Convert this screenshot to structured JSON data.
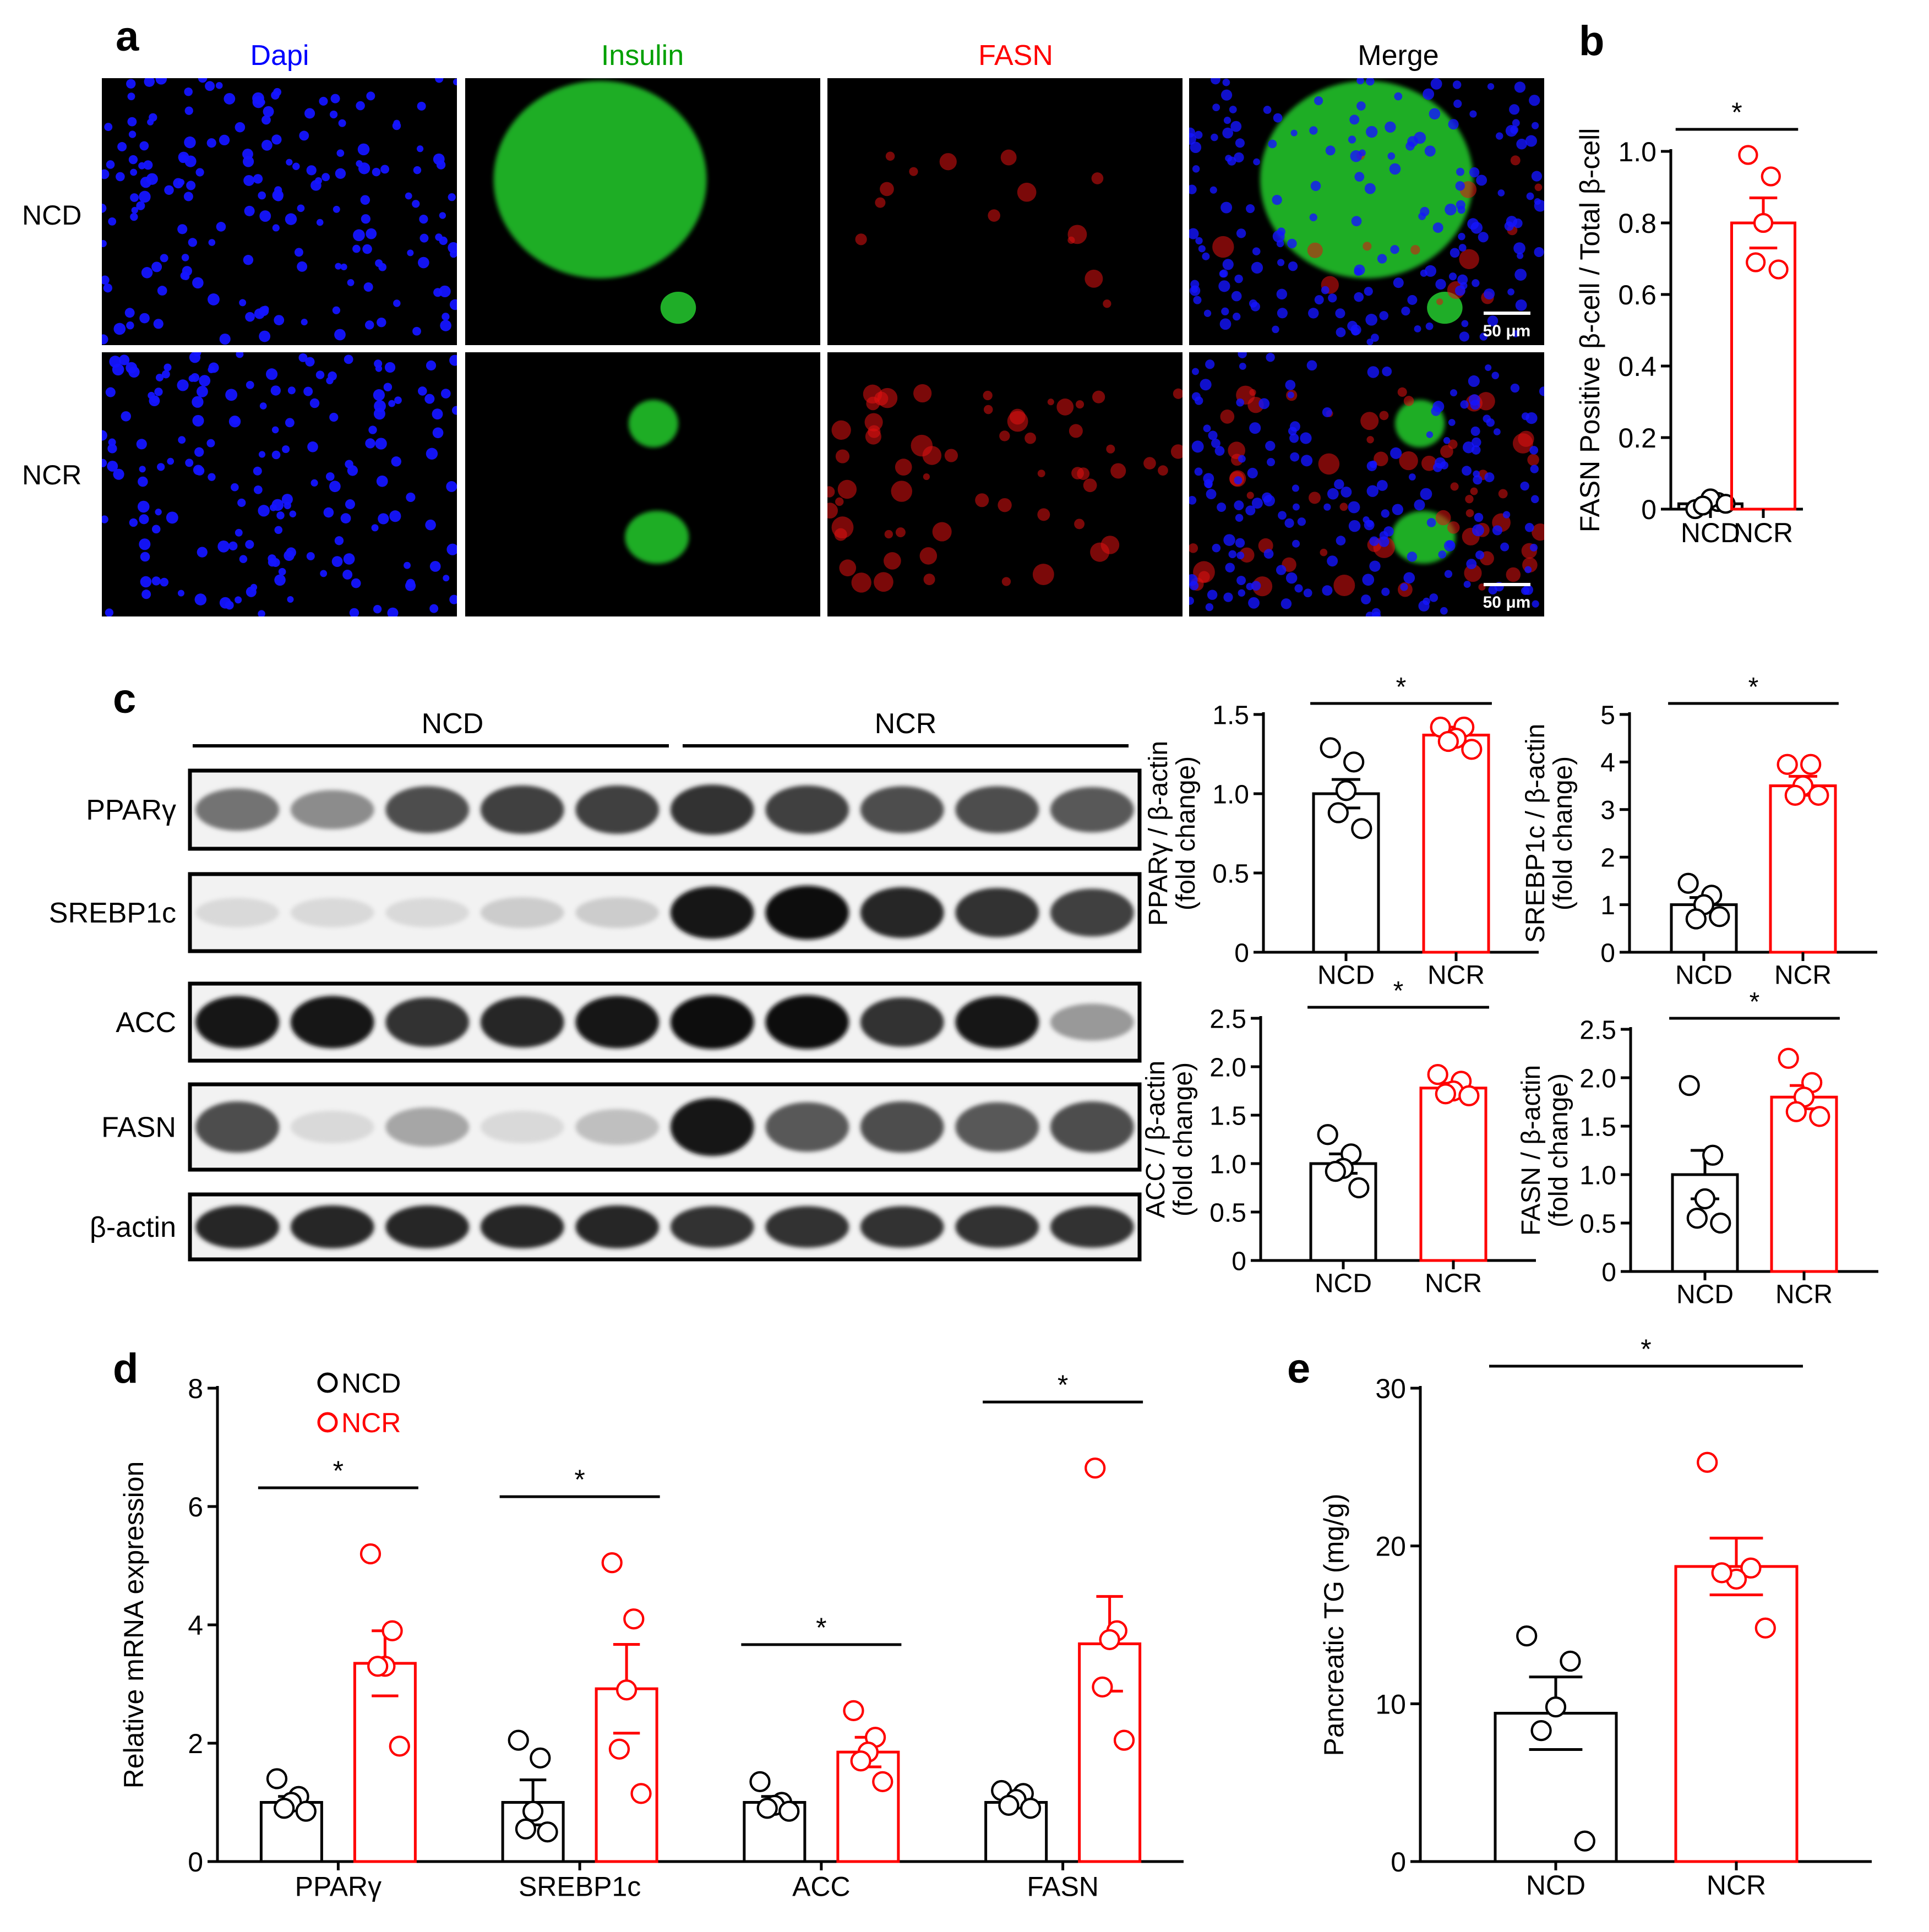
{
  "panel_a": {
    "letter": "a",
    "channels": [
      "Dapi",
      "Insulin",
      "FASN",
      "Merge"
    ],
    "channel_colors": [
      "#0000ff",
      "#00a000",
      "#ff0000",
      "#000000"
    ],
    "rows": [
      "NCD",
      "NCR"
    ],
    "scale_bar": "50 μm"
  },
  "panel_b": {
    "letter": "b",
    "sig": "*"
  },
  "panel_c": {
    "letter": "c",
    "group_labels": [
      "NCD",
      "NCR"
    ],
    "blots": [
      "PPARγ",
      "SREBP1c",
      "ACC",
      "FASN",
      "β-actin"
    ],
    "blot_intensity": {
      "PPARγ": [
        0.55,
        0.45,
        0.7,
        0.75,
        0.75,
        0.8,
        0.75,
        0.7,
        0.7,
        0.65
      ],
      "SREBP1c": [
        0.15,
        0.15,
        0.15,
        0.2,
        0.2,
        0.9,
        0.95,
        0.85,
        0.8,
        0.75
      ],
      "ACC": [
        0.9,
        0.9,
        0.8,
        0.85,
        0.9,
        0.95,
        0.95,
        0.8,
        0.9,
        0.4
      ],
      "FASN": [
        0.7,
        0.15,
        0.35,
        0.15,
        0.25,
        0.9,
        0.65,
        0.7,
        0.65,
        0.7
      ],
      "β-actin": [
        0.85,
        0.85,
        0.85,
        0.85,
        0.85,
        0.8,
        0.8,
        0.8,
        0.8,
        0.8
      ]
    },
    "sig": "*"
  },
  "panel_d": {
    "letter": "d",
    "sig": "*"
  },
  "panel_e": {
    "letter": "e",
    "sig": "*"
  },
  "colors": {
    "ncd": "#000000",
    "ncr": "#ff0000"
  },
  "chart_data": [
    {
      "id": "b",
      "type": "bar",
      "ylabel": "FASN  Positive β-cell / Total β-cell",
      "categories": [
        "NCD",
        "NCR"
      ],
      "ylim": [
        0,
        1.0
      ],
      "yticks": [
        0,
        0.2,
        0.4,
        0.6,
        0.8,
        1.0
      ],
      "yticklabels": [
        "0",
        "0.2",
        "0.4",
        "0.6",
        "0.8",
        "1.0"
      ],
      "means": [
        0.015,
        0.8
      ],
      "sem": [
        0.01,
        0.07
      ],
      "points": [
        [
          0.0,
          0.02,
          0.03,
          0.01,
          0.015
        ],
        [
          0.99,
          0.93,
          0.8,
          0.69,
          0.67
        ]
      ]
    },
    {
      "id": "c1",
      "type": "bar",
      "ylabel": "PPARγ / β-actin\n(fold change)",
      "categories": [
        "NCD",
        "NCR"
      ],
      "ylim": [
        0,
        1.5
      ],
      "yticks": [
        0,
        0.5,
        1.0,
        1.5
      ],
      "yticklabels": [
        "0",
        "0.5",
        "1.0",
        "1.5"
      ],
      "means": [
        1.0,
        1.37
      ],
      "sem": [
        0.09,
        0.05
      ],
      "points": [
        [
          1.29,
          1.2,
          1.02,
          0.88,
          0.78
        ],
        [
          1.42,
          1.42,
          1.35,
          1.33,
          1.28
        ]
      ]
    },
    {
      "id": "c2",
      "type": "bar",
      "ylabel": "SREBP1c / β-actin\n(fold change)",
      "categories": [
        "NCD",
        "NCR"
      ],
      "ylim": [
        0,
        5
      ],
      "yticks": [
        0,
        1,
        2,
        3,
        4,
        5
      ],
      "yticklabels": [
        "0",
        "1",
        "2",
        "3",
        "4",
        "5"
      ],
      "means": [
        1.0,
        3.5
      ],
      "sem": [
        0.15,
        0.2
      ],
      "points": [
        [
          1.45,
          1.2,
          1.0,
          0.7,
          0.75
        ],
        [
          3.95,
          3.95,
          3.5,
          3.3,
          3.3
        ]
      ]
    },
    {
      "id": "c3",
      "type": "bar",
      "ylabel": "ACC / β-actin\n(fold change)",
      "categories": [
        "NCD",
        "NCR"
      ],
      "ylim": [
        0,
        2.5
      ],
      "yticks": [
        0,
        0.5,
        1.0,
        1.5,
        2.0,
        2.5
      ],
      "yticklabels": [
        "0",
        "0.5",
        "1.0",
        "1.5",
        "2.0",
        "2.5"
      ],
      "means": [
        1.0,
        1.78
      ],
      "sem": [
        0.1,
        0.05
      ],
      "points": [
        [
          1.3,
          1.1,
          0.95,
          0.92,
          0.75
        ],
        [
          1.92,
          1.85,
          1.75,
          1.72,
          1.7
        ]
      ]
    },
    {
      "id": "c4",
      "type": "bar",
      "ylabel": "FASN / β-actin\n(fold change)",
      "categories": [
        "NCD",
        "NCR"
      ],
      "ylim": [
        0,
        2.5
      ],
      "yticks": [
        0,
        0.5,
        1.0,
        1.5,
        2.0,
        2.5
      ],
      "yticklabels": [
        "0",
        "0.5",
        "1.0",
        "1.5",
        "2.0",
        "2.5"
      ],
      "means": [
        1.0,
        1.8
      ],
      "sem": [
        0.25,
        0.12
      ],
      "points": [
        [
          1.92,
          1.2,
          0.75,
          0.55,
          0.5
        ],
        [
          2.2,
          1.95,
          1.8,
          1.65,
          1.6
        ]
      ]
    },
    {
      "id": "d",
      "type": "bar",
      "ylabel": "Relative mRNA expression",
      "categories": [
        "PPARγ",
        "SREBP1c",
        "ACC",
        "FASN"
      ],
      "ylim": [
        0,
        8
      ],
      "yticks": [
        0,
        2,
        4,
        6,
        8
      ],
      "yticklabels": [
        "0",
        "2",
        "4",
        "6",
        "8"
      ],
      "legend": [
        "NCD",
        "NCR"
      ],
      "series": [
        {
          "name": "NCD",
          "means": [
            1.0,
            1.0,
            1.0,
            1.0
          ],
          "sem": [
            0.1,
            0.38,
            0.1,
            0.07
          ],
          "points": [
            [
              1.4,
              1.1,
              1.0,
              0.9,
              0.85
            ],
            [
              2.05,
              1.75,
              0.85,
              0.55,
              0.5
            ],
            [
              1.35,
              1.0,
              0.95,
              0.9,
              0.85
            ],
            [
              1.2,
              1.15,
              1.05,
              0.95,
              0.9
            ]
          ]
        },
        {
          "name": "NCR",
          "means": [
            3.35,
            2.92,
            1.85,
            3.68
          ],
          "sem": [
            0.55,
            0.75,
            0.25,
            0.8
          ],
          "points": [
            [
              5.2,
              3.9,
              3.3,
              3.3,
              1.95
            ],
            [
              5.05,
              4.1,
              2.9,
              1.9,
              1.15
            ],
            [
              2.55,
              2.1,
              1.85,
              1.7,
              1.35
            ],
            [
              6.65,
              3.9,
              3.75,
              2.95,
              2.05
            ]
          ]
        }
      ]
    },
    {
      "id": "e",
      "type": "bar",
      "ylabel": "Pancreatic TG (mg/g)",
      "categories": [
        "NCD",
        "NCR"
      ],
      "ylim": [
        0,
        30
      ],
      "yticks": [
        0,
        10,
        20,
        30
      ],
      "yticklabels": [
        "0",
        "10",
        "20",
        "30"
      ],
      "means": [
        9.4,
        18.7
      ],
      "sem": [
        2.3,
        1.8
      ],
      "points": [
        [
          14.3,
          12.7,
          9.8,
          8.3,
          1.3
        ],
        [
          25.3,
          18.6,
          17.9,
          18.3,
          14.8
        ]
      ]
    }
  ]
}
